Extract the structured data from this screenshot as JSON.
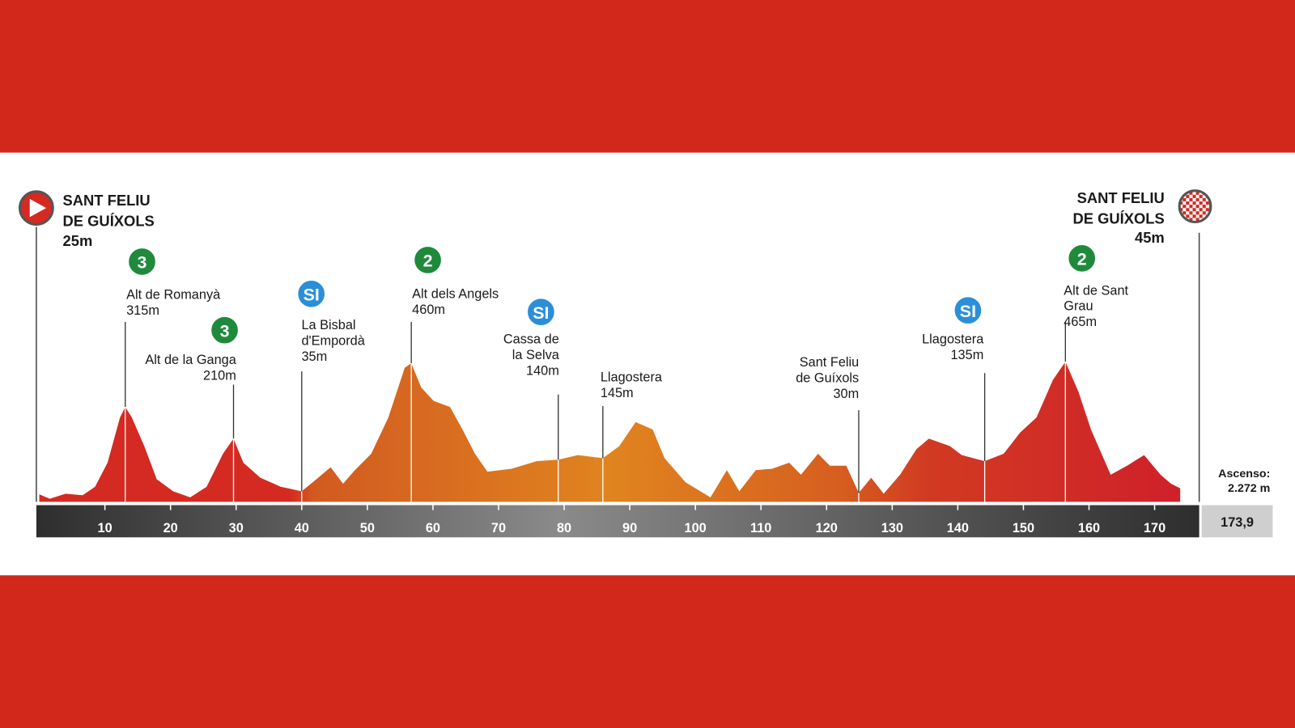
{
  "chart_data": {
    "type": "area",
    "start": {
      "name": [
        "SANT FELIU",
        "DE GUÍXOLS"
      ],
      "elevation": "25m"
    },
    "finish": {
      "name": [
        "SANT FELIU",
        "DE GUÍXOLS"
      ],
      "elevation": "45m"
    },
    "x": [
      0,
      1.6,
      4,
      6.6,
      8.5,
      10.4,
      12.3,
      13.1,
      14.1,
      16,
      17.9,
      20.4,
      23,
      25.5,
      28,
      29.6,
      31.1,
      33.7,
      36.8,
      40,
      42.5,
      44.4,
      46.3,
      48.1,
      50.6,
      53.2,
      55.7,
      56.7,
      58.2,
      60.1,
      62.6,
      64.5,
      66.4,
      68.3,
      72,
      75.8,
      79.1,
      82.1,
      85.9,
      88.4,
      90.9,
      93.5,
      95.3,
      98.5,
      102.3,
      104.8,
      106.7,
      109.2,
      111.7,
      114.3,
      116.1,
      118.7,
      120.5,
      123,
      124.9,
      126.8,
      128.7,
      131.2,
      133.7,
      135.6,
      138.8,
      140.6,
      144.1,
      147,
      149.5,
      152,
      154.5,
      156.4,
      158.4,
      160.3,
      163.3,
      165.8,
      168.4,
      170.9,
      172.5,
      173.9
    ],
    "values": [
      25,
      10,
      27,
      22,
      50,
      130,
      280,
      315,
      280,
      185,
      75,
      35,
      15,
      50,
      160,
      210,
      130,
      80,
      50,
      35,
      80,
      115,
      60,
      105,
      160,
      280,
      445,
      460,
      380,
      335,
      315,
      240,
      160,
      100,
      110,
      135,
      140,
      155,
      145,
      185,
      265,
      240,
      145,
      65,
      15,
      105,
      35,
      105,
      110,
      130,
      90,
      160,
      120,
      120,
      30,
      80,
      27,
      90,
      175,
      210,
      185,
      155,
      135,
      160,
      230,
      280,
      405,
      465,
      365,
      240,
      90,
      120,
      155,
      90,
      60,
      45
    ],
    "xlim": [
      0,
      173.9
    ],
    "xticks": [
      10,
      20,
      30,
      40,
      50,
      60,
      70,
      80,
      90,
      100,
      110,
      120,
      130,
      140,
      150,
      160,
      170
    ],
    "distance": "173,9",
    "ascent": {
      "label": "Ascenso:",
      "value": "2.272 m"
    },
    "points": [
      {
        "name": [
          "Alt de Romanyà"
        ],
        "elevation": "315m",
        "badge": "3",
        "badge_color": "#1f8a3c",
        "km": 13.1
      },
      {
        "name": [
          "Alt de la Ganga"
        ],
        "elevation": "210m",
        "badge": "3",
        "badge_color": "#1f8a3c",
        "km": 29.6
      },
      {
        "name": [
          "La Bisbal",
          "d'Empordà"
        ],
        "elevation": "35m",
        "badge": "SI",
        "badge_color": "#2b8fd8",
        "km": 40
      },
      {
        "name": [
          "Alt dels Angels"
        ],
        "elevation": "460m",
        "badge": "2",
        "badge_color": "#1f8a3c",
        "km": 56.7
      },
      {
        "name": [
          "Cassa de",
          "la Selva"
        ],
        "elevation": "140m",
        "badge": "SI",
        "badge_color": "#2b8fd8",
        "km": 79.1
      },
      {
        "name": [
          "Llagostera"
        ],
        "elevation": "145m",
        "km": 85.9
      },
      {
        "name": [
          "Sant Feliu",
          "de Guíxols"
        ],
        "elevation": "30m",
        "km": 124.9
      },
      {
        "name": [
          "Llagostera"
        ],
        "elevation": "135m",
        "badge": "SI",
        "badge_color": "#2b8fd8",
        "km": 144.1
      },
      {
        "name": [
          "Alt de Sant",
          "Grau"
        ],
        "elevation": "465m",
        "badge": "2",
        "badge_color": "#1f8a3c",
        "km": 156.4
      }
    ]
  }
}
